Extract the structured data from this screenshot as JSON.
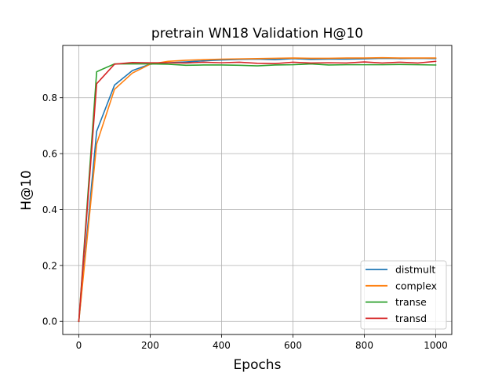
{
  "chart_data": {
    "type": "line",
    "title": "pretrain WN18 Validation H@10",
    "xlabel": "Epochs",
    "ylabel": "H@10",
    "xlim": [
      -45,
      1045
    ],
    "ylim": [
      -0.047,
      0.987
    ],
    "xticks": [
      0,
      200,
      400,
      600,
      800,
      1000
    ],
    "yticks": [
      0.0,
      0.2,
      0.4,
      0.6,
      0.8
    ],
    "ytick_labels": [
      "0.0",
      "0.2",
      "0.4",
      "0.6",
      "0.8"
    ],
    "grid": true,
    "legend_position": "lower-right",
    "x": [
      0,
      50,
      100,
      150,
      200,
      250,
      300,
      350,
      400,
      450,
      500,
      550,
      600,
      650,
      700,
      750,
      800,
      850,
      900,
      950,
      1000
    ],
    "series": [
      {
        "name": "distmult",
        "color": "#1f77b4",
        "values": [
          0.0,
          0.68,
          0.845,
          0.897,
          0.92,
          0.925,
          0.928,
          0.932,
          0.935,
          0.937,
          0.938,
          0.936,
          0.94,
          0.937,
          0.938,
          0.938,
          0.939,
          0.941,
          0.94,
          0.941,
          0.94
        ]
      },
      {
        "name": "complex",
        "color": "#ff7f0e",
        "values": [
          0.0,
          0.635,
          0.83,
          0.888,
          0.92,
          0.93,
          0.934,
          0.936,
          0.938,
          0.939,
          0.94,
          0.941,
          0.942,
          0.941,
          0.941,
          0.942,
          0.942,
          0.943,
          0.942,
          0.942,
          0.942
        ]
      },
      {
        "name": "transe",
        "color": "#2ca02c",
        "values": [
          0.0,
          0.893,
          0.921,
          0.921,
          0.921,
          0.92,
          0.916,
          0.917,
          0.917,
          0.916,
          0.914,
          0.917,
          0.918,
          0.921,
          0.917,
          0.918,
          0.918,
          0.918,
          0.919,
          0.918,
          0.917
        ]
      },
      {
        "name": "transd",
        "color": "#d62728",
        "values": [
          0.0,
          0.85,
          0.92,
          0.926,
          0.925,
          0.925,
          0.924,
          0.927,
          0.925,
          0.927,
          0.923,
          0.922,
          0.927,
          0.924,
          0.925,
          0.924,
          0.928,
          0.924,
          0.927,
          0.924,
          0.93
        ]
      }
    ]
  }
}
